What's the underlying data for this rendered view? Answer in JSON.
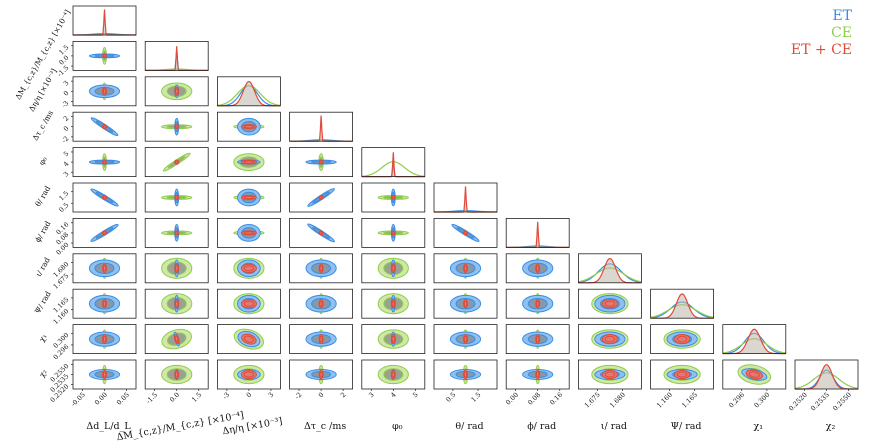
{
  "chart_data": {
    "type": "corner",
    "title": "",
    "parameters": [
      {
        "key": "dL",
        "xlabel": "Δd_L/d_L",
        "ylabel": "ΔM_{c,z}/M_{c,z} [×10⁻⁴]",
        "ticks": [
          "-0.05",
          "0.00",
          "0.05"
        ]
      },
      {
        "key": "Mc",
        "xlabel": "ΔM_{c,z}/M_{c,z} [×10⁻⁴]",
        "ylabel": "Δη/η [×10⁻³]",
        "ticks": [
          "-1.5",
          "0.0",
          "1.5"
        ]
      },
      {
        "key": "eta",
        "xlabel": "Δη/η [×10⁻³]",
        "ylabel": "Δτ_c /ms",
        "ticks": [
          "-3",
          "0",
          "3"
        ]
      },
      {
        "key": "tc",
        "xlabel": "Δτ_c /ms",
        "ylabel": "φ₀",
        "ticks": [
          "-2",
          "0",
          "2"
        ]
      },
      {
        "key": "phi0",
        "xlabel": "φ₀",
        "ylabel": "θ/ rad",
        "ticks": [
          "3",
          "4",
          "5"
        ]
      },
      {
        "key": "theta",
        "xlabel": "θ/ rad",
        "ylabel": "ϕ/ rad",
        "ticks": [
          "0.5",
          "1.5"
        ]
      },
      {
        "key": "phi",
        "xlabel": "ϕ/ rad",
        "ylabel": "ι/ rad",
        "ticks": [
          "0.00",
          "0.08",
          "0.16"
        ]
      },
      {
        "key": "iota",
        "xlabel": "ι/ rad",
        "ylabel": "Ψ/ rad",
        "ticks": [
          "1.675",
          "1.680"
        ]
      },
      {
        "key": "psi",
        "xlabel": "Ψ/ rad",
        "ylabel": "χ₁",
        "ticks": [
          "1.160",
          "1.165"
        ]
      },
      {
        "key": "chi1",
        "xlabel": "χ₁",
        "ylabel": "χ₂",
        "ticks": [
          "0.296",
          "0.300"
        ]
      },
      {
        "key": "chi2",
        "xlabel": "χ₂",
        "ylabel": "",
        "ticks": [
          "0.2520",
          "0.2535",
          "0.2550"
        ]
      }
    ],
    "left_tick_labels": [
      [
        "1.5",
        "0.0",
        "-1.5"
      ],
      [
        "3",
        "0",
        "-3"
      ],
      [
        "2",
        "0",
        "-2"
      ],
      [
        "5",
        "4",
        "3"
      ],
      [
        "1.5",
        "0.5"
      ],
      [
        "0.16",
        "0.08",
        "0.00"
      ],
      [
        "1.680",
        "1.675"
      ],
      [
        "1.165",
        "1.160"
      ],
      [
        "0.300",
        "0.296"
      ],
      [
        "0.2550",
        "0.2535",
        "0.2520"
      ]
    ],
    "series": [
      {
        "name": "ET",
        "color": "#3a8ee6"
      },
      {
        "name": "CE",
        "color": "#8fcc4a"
      },
      {
        "name": "ET + CE",
        "color": "#e04a3a"
      }
    ],
    "legend_position": "top-right",
    "sigma": {
      "ET": [
        1.0,
        0.06,
        0.75,
        1.0,
        0.03,
        1.0,
        1.0,
        1.0,
        1.0,
        0.85,
        0.6
      ],
      "CE": [
        0.1,
        1.0,
        1.0,
        0.15,
        1.0,
        0.15,
        0.12,
        1.2,
        1.2,
        1.1,
        1.1
      ],
      "ETCE": [
        0.03,
        0.05,
        0.5,
        0.03,
        0.03,
        0.02,
        0.025,
        0.5,
        0.5,
        0.55,
        0.5
      ]
    },
    "diag_peak_heights": {
      "ET": [
        0.05,
        0.75,
        0.75,
        0.05,
        0.55,
        0.05,
        0.05,
        0.7,
        0.6,
        0.75,
        0.7
      ],
      "CE": [
        0.05,
        0.05,
        0.75,
        0.05,
        0.55,
        0.05,
        0.05,
        0.55,
        0.5,
        0.55,
        0.6
      ],
      "ETCE": [
        0.95,
        0.9,
        0.9,
        0.95,
        0.9,
        0.95,
        0.95,
        0.9,
        0.9,
        0.9,
        0.9
      ]
    },
    "correlations": [
      {
        "row": 3,
        "col": 0,
        "rho": -0.98
      },
      {
        "row": 5,
        "col": 0,
        "rho": -0.9
      },
      {
        "row": 6,
        "col": 0,
        "rho": 0.9
      },
      {
        "row": 4,
        "col": 1,
        "rho": 0.97
      },
      {
        "row": 5,
        "col": 3,
        "rho": 0.98
      },
      {
        "row": 6,
        "col": 3,
        "rho": -0.97
      },
      {
        "row": 6,
        "col": 5,
        "rho": -0.9
      },
      {
        "row": 9,
        "col": 1,
        "rho": 0.6
      },
      {
        "row": 9,
        "col": 2,
        "rho": -0.8
      },
      {
        "row": 10,
        "col": 9,
        "rho": -0.5
      }
    ]
  }
}
